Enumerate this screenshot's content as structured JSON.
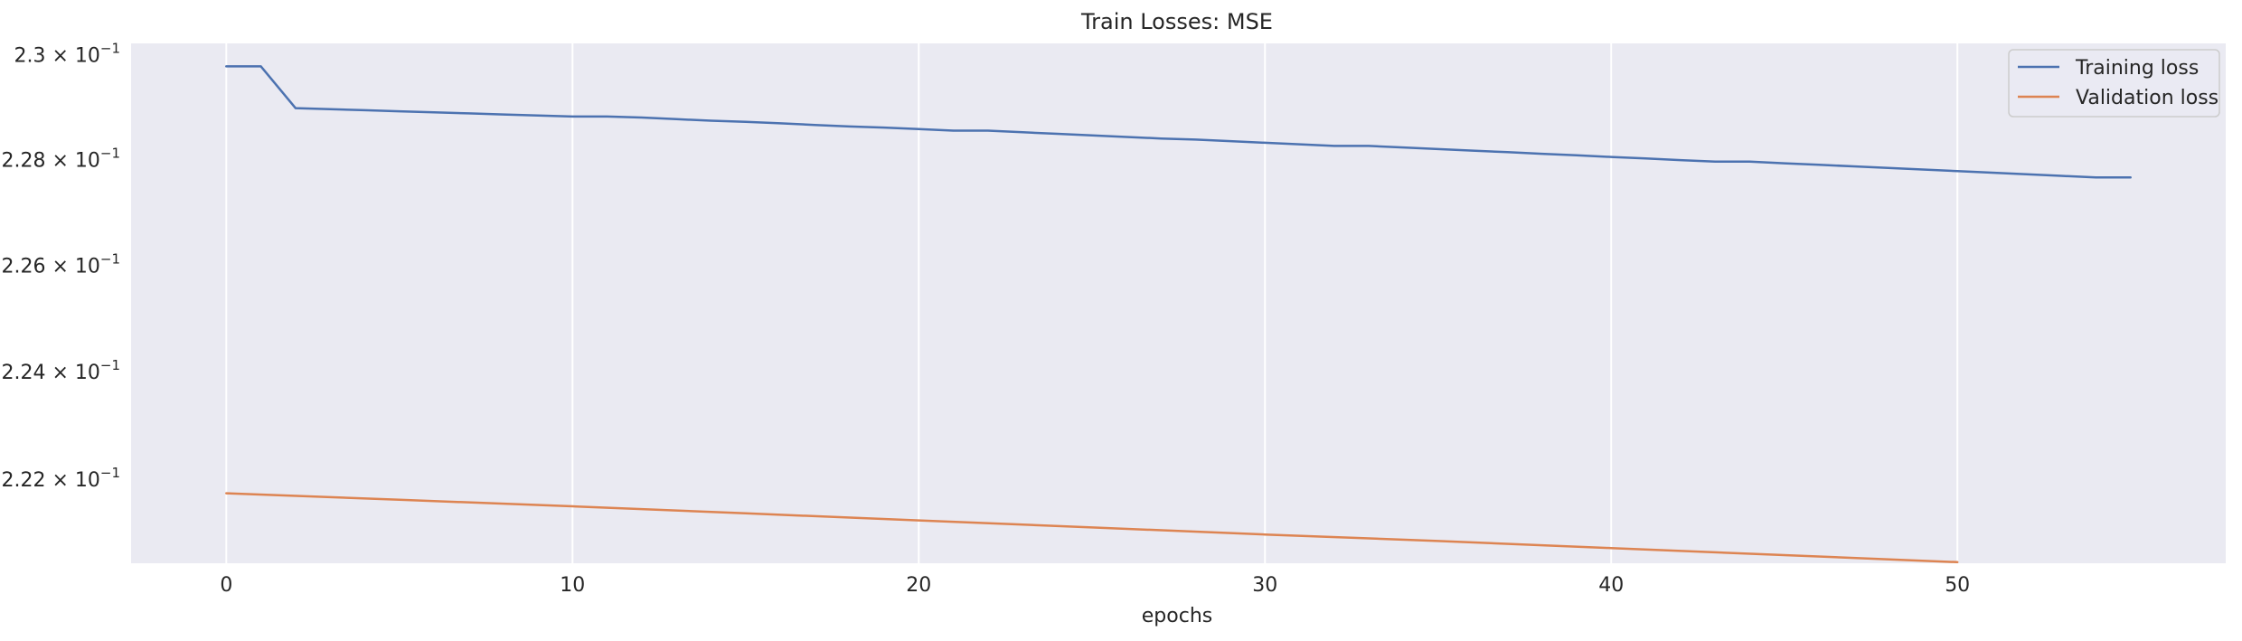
{
  "chart_data": {
    "type": "line",
    "title": "Train Losses:  MSE",
    "xlabel": "epochs",
    "ylabel": "",
    "y_scale": "log",
    "grid": "vertical",
    "legend_position": "upper-right",
    "xlim": [
      -2.75,
      57.75
    ],
    "ylim": [
      0.22045,
      0.23022
    ],
    "x_ticks": [
      0,
      10,
      20,
      30,
      40,
      50
    ],
    "y_ticks": [
      {
        "value": 0.222,
        "mantissa": "2.22",
        "exponent": "−1"
      },
      {
        "value": 0.224,
        "mantissa": "2.24",
        "exponent": "−1"
      },
      {
        "value": 0.226,
        "mantissa": "2.26",
        "exponent": "−1"
      },
      {
        "value": 0.228,
        "mantissa": "2.28",
        "exponent": "−1"
      },
      {
        "value": 0.23,
        "mantissa": "2.3",
        "exponent": "−1"
      }
    ],
    "tick_times": "×",
    "tick_base": "10",
    "series": [
      {
        "name": "Training loss",
        "color": "#4c72b0",
        "x": [
          0,
          1,
          2,
          3,
          4,
          5,
          6,
          7,
          8,
          9,
          10,
          11,
          12,
          13,
          14,
          15,
          16,
          17,
          18,
          19,
          20,
          21,
          22,
          23,
          24,
          25,
          26,
          27,
          28,
          29,
          30,
          31,
          32,
          33,
          34,
          35,
          36,
          37,
          38,
          39,
          40,
          41,
          42,
          43,
          44,
          45,
          46,
          47,
          48,
          49,
          50,
          51,
          52,
          53,
          54,
          55
        ],
        "values": [
          0.22978,
          0.22978,
          0.22898,
          0.22896,
          0.22894,
          0.22892,
          0.2289,
          0.22888,
          0.22886,
          0.22884,
          0.22882,
          0.22882,
          0.2288,
          0.22877,
          0.22874,
          0.22872,
          0.22869,
          0.22866,
          0.22863,
          0.22861,
          0.22858,
          0.22855,
          0.22855,
          0.22852,
          0.22849,
          0.22846,
          0.22843,
          0.2284,
          0.22838,
          0.22835,
          0.22832,
          0.22829,
          0.22826,
          0.22826,
          0.22823,
          0.2282,
          0.22817,
          0.22814,
          0.22811,
          0.22808,
          0.22805,
          0.22802,
          0.22799,
          0.22796,
          0.22796,
          0.22793,
          0.2279,
          0.22787,
          0.22784,
          0.22781,
          0.22778,
          0.22775,
          0.22772,
          0.22769,
          0.22766,
          0.22766
        ]
      },
      {
        "name": "Validation loss",
        "color": "#dd8452",
        "x": [
          0,
          5,
          10,
          15,
          20,
          25,
          30,
          35,
          40,
          45,
          50
        ],
        "values": [
          0.22174,
          0.22162,
          0.2215,
          0.22137,
          0.22124,
          0.22111,
          0.22098,
          0.22086,
          0.22073,
          0.2206,
          0.22047
        ]
      }
    ]
  }
}
